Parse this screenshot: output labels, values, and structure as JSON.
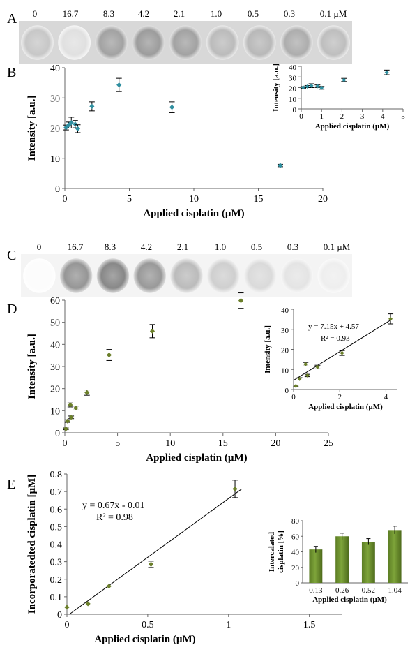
{
  "doses": [
    "0",
    "16.7",
    "8.3",
    "4.2",
    "2.1",
    "1.0",
    "0.5",
    "0.3",
    "0.1 µM"
  ],
  "panel_letters": {
    "a": "A",
    "b": "B",
    "c": "C",
    "d": "D",
    "e": "E"
  },
  "spot_intensity_A": [
    0.33,
    0.18,
    0.55,
    0.58,
    0.55,
    0.4,
    0.42,
    0.48,
    0.38
  ],
  "spot_intensity_C": [
    0.02,
    0.62,
    0.7,
    0.6,
    0.4,
    0.28,
    0.22,
    0.16,
    0.1
  ],
  "colors": {
    "panel_b_marker": "#2f8fa0",
    "panel_d_marker": "#6b7f2a",
    "panel_e_bar": "#7ea43a",
    "axis": "#666666"
  },
  "chart_data": [
    {
      "id": "B-main",
      "type": "scatter",
      "xlabel": "Applied cisplatin (µM)",
      "ylabel": "Intensity [a.u.]",
      "xlim": [
        0,
        20
      ],
      "ylim": [
        0,
        40
      ],
      "xticks": [
        "0",
        "5",
        "10",
        "15",
        "20"
      ],
      "yticks": [
        "0",
        "10",
        "20",
        "30",
        "40"
      ],
      "points": [
        [
          0.1,
          20.2,
          0.8
        ],
        [
          0.3,
          21.0,
          1.0
        ],
        [
          0.5,
          21.8,
          1.8
        ],
        [
          0.8,
          21.3,
          1.2
        ],
        [
          1.0,
          19.8,
          1.3
        ],
        [
          2.1,
          27.2,
          1.5
        ],
        [
          4.2,
          34.3,
          2.2
        ],
        [
          8.3,
          26.9,
          1.8
        ],
        [
          16.7,
          7.6,
          0.4
        ]
      ]
    },
    {
      "id": "B-inset",
      "type": "scatter",
      "xlabel": "Applied cisplatin (µM)",
      "ylabel": "Intensity [a.u.]",
      "xlim": [
        0,
        5
      ],
      "ylim": [
        0,
        40
      ],
      "xticks": [
        "0",
        "1",
        "2",
        "3",
        "4",
        "5"
      ],
      "yticks": [
        "0",
        "10",
        "20",
        "30",
        "40"
      ],
      "points": [
        [
          0.1,
          20.2,
          0.8
        ],
        [
          0.3,
          21.0,
          1.0
        ],
        [
          0.5,
          21.8,
          1.8
        ],
        [
          0.8,
          21.3,
          1.2
        ],
        [
          1.0,
          19.8,
          1.3
        ],
        [
          2.1,
          27.2,
          1.5
        ],
        [
          4.2,
          34.3,
          2.2
        ]
      ]
    },
    {
      "id": "D-main",
      "type": "scatter",
      "xlabel": "Applied cisplatin (µM)",
      "ylabel": "Intensity [a.u.]",
      "xlim": [
        0,
        25
      ],
      "ylim": [
        0,
        60
      ],
      "xticks": [
        "0",
        "5",
        "10",
        "15",
        "20",
        "25"
      ],
      "yticks": [
        "0",
        "10",
        "20",
        "30",
        "40",
        "50",
        "60"
      ],
      "points": [
        [
          0.1,
          1.8,
          0.4
        ],
        [
          0.26,
          5.3,
          0.6
        ],
        [
          0.52,
          12.6,
          0.9
        ],
        [
          0.6,
          7.0,
          0.6
        ],
        [
          1.04,
          11.2,
          0.9
        ],
        [
          2.1,
          18.2,
          1.2
        ],
        [
          4.2,
          35.2,
          2.5
        ],
        [
          8.3,
          46.0,
          3.0
        ],
        [
          16.7,
          59.8,
          3.5
        ]
      ]
    },
    {
      "id": "D-inset",
      "type": "scatter",
      "xlabel": "Applied cisplatin (µM)",
      "ylabel": "Intensity [a.u.]",
      "xlim": [
        0,
        4.5
      ],
      "ylim": [
        0,
        40
      ],
      "xticks": [
        "0",
        "2",
        "4"
      ],
      "yticks": [
        "0",
        "10",
        "20",
        "30",
        "40"
      ],
      "annotation": [
        "y = 7.15x + 4.57",
        "R² = 0.93"
      ],
      "fit": {
        "slope": 7.15,
        "intercept": 4.57
      },
      "points": [
        [
          0.1,
          1.8,
          0.4
        ],
        [
          0.26,
          5.3,
          0.6
        ],
        [
          0.52,
          12.6,
          0.9
        ],
        [
          0.6,
          7.0,
          0.6
        ],
        [
          1.04,
          11.2,
          0.9
        ],
        [
          2.1,
          18.2,
          1.2
        ],
        [
          4.2,
          35.2,
          2.5
        ]
      ]
    },
    {
      "id": "E-main",
      "type": "scatter",
      "xlabel": "Applied cisplatin (µM)",
      "ylabel": "Incorporatedted cisplatin [µM]",
      "xlim": [
        0,
        1.7
      ],
      "ylim": [
        0,
        0.8
      ],
      "xticks": [
        "0",
        "0.5",
        "1",
        "1.5"
      ],
      "yticks": [
        "0",
        "0.1",
        "0.2",
        "0.3",
        "0.4",
        "0.5",
        "0.6",
        "0.7",
        "0.8"
      ],
      "annotation": [
        "y = 0.67x - 0.01",
        "R² = 0.98"
      ],
      "fit": {
        "slope": 0.67,
        "intercept": -0.01
      },
      "points": [
        [
          0,
          0.04,
          0
        ],
        [
          0.13,
          0.06,
          0
        ],
        [
          0.26,
          0.16,
          0
        ],
        [
          0.52,
          0.285,
          0.018
        ],
        [
          1.04,
          0.715,
          0.05
        ]
      ]
    },
    {
      "id": "E-inset",
      "type": "bar",
      "xlabel": "Applied  cisplatin (µM)",
      "ylabel": "Intercalated cisplatin [%]",
      "ylim": [
        0,
        80
      ],
      "categories": [
        "0.13",
        "0.26",
        "0.52",
        "1.04"
      ],
      "yticks": [
        "0",
        "20",
        "40",
        "60",
        "80"
      ],
      "values": [
        43,
        60,
        53,
        68
      ],
      "errors": [
        4,
        4,
        4,
        5
      ]
    }
  ]
}
